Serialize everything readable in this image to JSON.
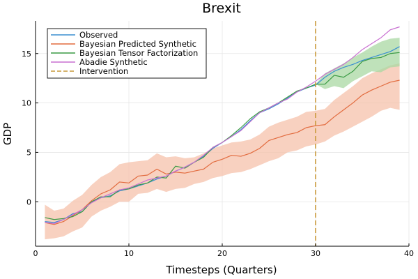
{
  "chart_data": {
    "type": "line",
    "title": "Brexit",
    "xlabel": "Timesteps (Quarters)",
    "ylabel": "GDP",
    "xlim": [
      0,
      40
    ],
    "ylim": [
      -4.5,
      18.3
    ],
    "xticks": [
      0,
      10,
      20,
      30,
      40
    ],
    "yticks": [
      0,
      5,
      10,
      15
    ],
    "grid": true,
    "legend_position": "top-left",
    "intervention_x": 30,
    "series": [
      {
        "name": "Observed",
        "color": "#3a8fd0",
        "x": [
          1,
          2,
          3,
          4,
          5,
          6,
          7,
          8,
          9,
          10,
          11,
          12,
          13,
          14,
          15,
          16,
          17,
          18,
          19,
          20,
          21,
          22,
          23,
          24,
          25,
          26,
          27,
          28,
          29,
          30,
          31,
          32,
          33,
          34,
          35,
          36,
          37,
          38,
          39
        ],
        "values": [
          -2.0,
          -2.1,
          -1.8,
          -1.2,
          -1.0,
          0.0,
          0.4,
          0.6,
          1.1,
          1.3,
          1.6,
          1.9,
          2.3,
          2.6,
          3.1,
          3.5,
          4.0,
          4.6,
          5.4,
          6.0,
          6.6,
          7.3,
          8.2,
          9.0,
          9.4,
          9.9,
          10.5,
          11.1,
          11.5,
          11.8,
          12.6,
          13.2,
          13.6,
          13.9,
          14.3,
          14.6,
          14.9,
          15.2,
          15.7
        ]
      },
      {
        "name": "Bayesian Predicted Synthetic",
        "color": "#e26b3e",
        "x": [
          1,
          2,
          3,
          4,
          5,
          6,
          7,
          8,
          9,
          10,
          11,
          12,
          13,
          14,
          15,
          16,
          17,
          18,
          19,
          20,
          21,
          22,
          23,
          24,
          25,
          26,
          27,
          28,
          29,
          30,
          31,
          32,
          33,
          34,
          35,
          36,
          37,
          38,
          39
        ],
        "values": [
          -2.1,
          -2.3,
          -2.0,
          -1.4,
          -0.8,
          0.1,
          0.8,
          1.2,
          2.0,
          1.9,
          2.6,
          2.7,
          3.3,
          2.8,
          3.0,
          2.9,
          3.1,
          3.3,
          4.0,
          4.3,
          4.7,
          4.6,
          4.9,
          5.4,
          6.2,
          6.5,
          6.8,
          7.0,
          7.5,
          7.7,
          7.8,
          8.6,
          9.3,
          10.0,
          10.8,
          11.3,
          11.7,
          12.1,
          12.3
        ],
        "band_lower": [
          -3.8,
          -3.7,
          -3.5,
          -3.0,
          -2.6,
          -1.5,
          -0.9,
          -0.5,
          0.0,
          0.0,
          0.8,
          0.9,
          1.3,
          1.0,
          1.3,
          1.4,
          1.8,
          2.0,
          2.4,
          2.6,
          2.9,
          3.0,
          3.3,
          3.7,
          4.1,
          4.4,
          5.0,
          5.2,
          5.6,
          5.8,
          6.1,
          6.7,
          7.1,
          7.6,
          8.1,
          8.6,
          9.2,
          9.5,
          9.3
        ],
        "band_upper": [
          -0.3,
          -0.9,
          -0.7,
          0.1,
          0.7,
          1.7,
          2.5,
          3.0,
          3.8,
          4.0,
          4.1,
          4.2,
          4.9,
          4.5,
          4.6,
          4.4,
          4.5,
          4.9,
          5.4,
          5.7,
          6.0,
          6.1,
          6.3,
          6.8,
          7.6,
          8.0,
          8.3,
          8.6,
          9.1,
          9.2,
          9.4,
          10.3,
          11.0,
          11.7,
          12.5,
          13.0,
          13.4,
          13.8,
          14.0
        ],
        "band_color": "#f5c1ab"
      },
      {
        "name": "Bayesian Tensor Factorization",
        "color": "#3a9a44",
        "x": [
          1,
          2,
          3,
          4,
          5,
          6,
          7,
          8,
          9,
          10,
          11,
          12,
          13,
          14,
          15,
          16,
          17,
          18,
          19,
          20,
          21,
          22,
          23,
          24,
          25,
          26,
          27,
          28,
          29,
          30,
          31,
          32,
          33,
          34,
          35,
          36,
          37,
          38,
          39
        ],
        "values": [
          -1.6,
          -1.8,
          -1.7,
          -1.5,
          -1.0,
          0.0,
          0.5,
          0.5,
          1.2,
          1.3,
          1.7,
          1.9,
          2.5,
          2.4,
          3.6,
          3.4,
          4.0,
          4.5,
          5.5,
          6.0,
          6.7,
          7.5,
          8.4,
          9.1,
          9.5,
          10.0,
          10.6,
          11.2,
          11.5,
          11.9,
          11.9,
          12.8,
          12.6,
          13.2,
          14.2,
          14.5,
          14.6,
          15.0,
          15.1
        ],
        "band_lower": [
          null,
          null,
          null,
          null,
          null,
          null,
          null,
          null,
          null,
          null,
          null,
          null,
          null,
          null,
          null,
          null,
          null,
          null,
          null,
          null,
          null,
          null,
          null,
          null,
          null,
          null,
          null,
          null,
          null,
          11.9,
          11.4,
          11.7,
          11.5,
          12.2,
          12.7,
          13.2,
          13.1,
          13.6,
          13.7
        ],
        "band_upper": [
          null,
          null,
          null,
          null,
          null,
          null,
          null,
          null,
          null,
          null,
          null,
          null,
          null,
          null,
          null,
          null,
          null,
          null,
          null,
          null,
          null,
          null,
          null,
          null,
          null,
          null,
          null,
          null,
          null,
          11.9,
          13.0,
          13.5,
          14.0,
          14.6,
          15.1,
          15.7,
          16.2,
          16.5,
          16.6
        ],
        "band_color": "#a9d8a3"
      },
      {
        "name": "Abadie Synthetic",
        "color": "#c86fd1",
        "x": [
          1,
          2,
          3,
          4,
          5,
          6,
          7,
          8,
          9,
          10,
          11,
          12,
          13,
          14,
          15,
          16,
          17,
          18,
          19,
          20,
          21,
          22,
          23,
          24,
          25,
          26,
          27,
          28,
          29,
          30,
          31,
          32,
          33,
          34,
          35,
          36,
          37,
          38,
          39
        ],
        "values": [
          -2.1,
          -2.2,
          -1.8,
          -1.3,
          -0.8,
          -0.1,
          0.4,
          0.8,
          1.2,
          1.4,
          1.8,
          2.2,
          2.4,
          2.6,
          3.1,
          3.5,
          4.0,
          4.7,
          5.5,
          6.0,
          6.6,
          7.2,
          8.1,
          9.0,
          9.5,
          10.0,
          10.4,
          11.1,
          11.6,
          12.2,
          12.9,
          13.4,
          13.9,
          14.6,
          15.4,
          16.0,
          16.6,
          17.4,
          17.7
        ]
      },
      {
        "name": "Intervention",
        "color": "#c99a3c",
        "style": "dashed"
      }
    ]
  }
}
